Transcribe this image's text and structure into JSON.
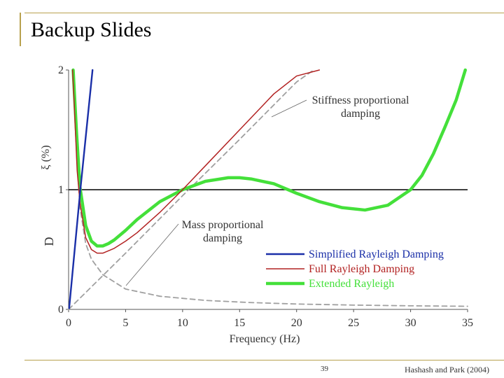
{
  "slide": {
    "title": "Backup Slides",
    "page_number": "39",
    "credit": "Hashash and Park (2004)"
  },
  "colors": {
    "accent": "#b8a14e",
    "simplified": "#1a2fa8",
    "full": "#b22222",
    "extended": "#44e03a",
    "components": "#a0a0a0"
  },
  "chart_data": {
    "type": "line",
    "xlabel": "Frequency (Hz)",
    "ylabel_lines": [
      "D",
      "ξ (%)"
    ],
    "xlim": [
      0,
      35
    ],
    "ylim": [
      0,
      2
    ],
    "x_ticks": [
      "0",
      "5",
      "10",
      "15",
      "20",
      "25",
      "30",
      "35"
    ],
    "y_ticks": [
      "0",
      "1",
      "2"
    ],
    "target_ratio": 1,
    "annotations": [
      {
        "lines": [
          "Stiffness proportional",
          "damping"
        ],
        "x": 21,
        "y": 1.59
      },
      {
        "lines": [
          "Mass proportional",
          "damping"
        ],
        "x": 1.9,
        "y": 0.62
      }
    ],
    "series": [
      {
        "name": "Simplified Rayleigh Damping",
        "style": "simplified",
        "x": [
          0.05,
          1.0,
          2.1
        ],
        "y": [
          0.01,
          0.97,
          2.0
        ]
      },
      {
        "name": "Full Rayleigh Damping",
        "style": "full",
        "x": [
          0.35,
          0.5,
          0.75,
          1.0,
          1.5,
          2.0,
          2.5,
          3.0,
          4.0,
          5.0,
          6.0,
          8.0,
          10.0,
          12.0,
          15.0,
          18.0,
          20.0,
          22.0
        ],
        "y": [
          2.0,
          1.7,
          1.16,
          0.89,
          0.6,
          0.5,
          0.47,
          0.47,
          0.51,
          0.57,
          0.64,
          0.81,
          1.0,
          1.2,
          1.5,
          1.8,
          1.95,
          2.0
        ]
      },
      {
        "name": "Extended Rayleigh",
        "style": "extended",
        "x": [
          0.4,
          0.7,
          1.0,
          1.5,
          2.0,
          2.5,
          3.0,
          3.5,
          4.0,
          5.0,
          6.0,
          8.0,
          10.0,
          12.0,
          14.0,
          15.0,
          16.0,
          18.0,
          20.0,
          22.0,
          24.0,
          26.0,
          28.0,
          30.0,
          31.0,
          32.0,
          33.0,
          34.0,
          34.8
        ],
        "y": [
          2.0,
          1.47,
          1.02,
          0.7,
          0.57,
          0.53,
          0.53,
          0.55,
          0.58,
          0.66,
          0.75,
          0.9,
          1.0,
          1.07,
          1.1,
          1.1,
          1.09,
          1.05,
          0.97,
          0.9,
          0.85,
          0.83,
          0.87,
          1.0,
          1.12,
          1.3,
          1.52,
          1.75,
          2.0
        ]
      },
      {
        "name": "",
        "style": "stiffness-component",
        "x": [
          0,
          5,
          10,
          15,
          20,
          21.5
        ],
        "y": [
          0,
          0.47,
          0.95,
          1.42,
          1.9,
          2.0
        ]
      },
      {
        "name": "",
        "style": "mass-component",
        "x": [
          0.45,
          0.7,
          1.0,
          1.5,
          2.0,
          3.0,
          5.0,
          8.0,
          12.0,
          16.0,
          20.0,
          25.0,
          30.0,
          35.0
        ],
        "y": [
          2.0,
          1.3,
          0.85,
          0.55,
          0.42,
          0.29,
          0.17,
          0.11,
          0.075,
          0.057,
          0.045,
          0.036,
          0.03,
          0.026
        ]
      }
    ]
  }
}
